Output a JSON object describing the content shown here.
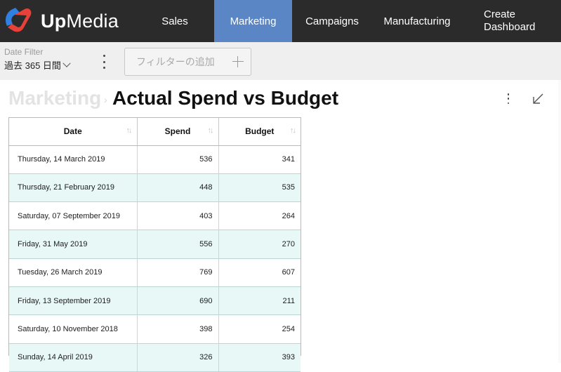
{
  "app": {
    "name_prefix": "Up",
    "name_suffix": "Media",
    "logo_colors": {
      "blue": "#2f80e0",
      "red": "#e8413a"
    }
  },
  "nav": {
    "items": [
      {
        "label": "Sales",
        "active": false
      },
      {
        "label": "Marketing",
        "active": true
      },
      {
        "label": "Campaigns",
        "active": false
      },
      {
        "label": "Manufacturing",
        "active": false
      }
    ],
    "create_line1": "Create",
    "create_line2": "Dashboard",
    "active_color": "#5b86c5",
    "bar_color": "#2b2b2b"
  },
  "filters": {
    "date_filter_label": "Date Filter",
    "date_filter_value": "過去 365 日間",
    "add_filter_placeholder": "フィルターの追加"
  },
  "page": {
    "breadcrumb": "Marketing",
    "title": "Actual Spend vs Budget"
  },
  "table": {
    "columns": [
      "Date",
      "Spend",
      "Budget"
    ],
    "rows": [
      {
        "date": "Thursday, 14 March 2019",
        "spend": "536",
        "budget": "341"
      },
      {
        "date": "Thursday, 21 February 2019",
        "spend": "448",
        "budget": "535"
      },
      {
        "date": "Saturday, 07 September 2019",
        "spend": "403",
        "budget": "264"
      },
      {
        "date": "Friday, 31 May 2019",
        "spend": "556",
        "budget": "270"
      },
      {
        "date": "Tuesday, 26 March 2019",
        "spend": "769",
        "budget": "607"
      },
      {
        "date": "Friday, 13 September 2019",
        "spend": "690",
        "budget": "211"
      },
      {
        "date": "Saturday, 10 November 2018",
        "spend": "398",
        "budget": "254"
      },
      {
        "date": "Sunday, 14 April 2019",
        "spend": "326",
        "budget": "393"
      }
    ],
    "alt_row_color": "#e8f8f7"
  }
}
